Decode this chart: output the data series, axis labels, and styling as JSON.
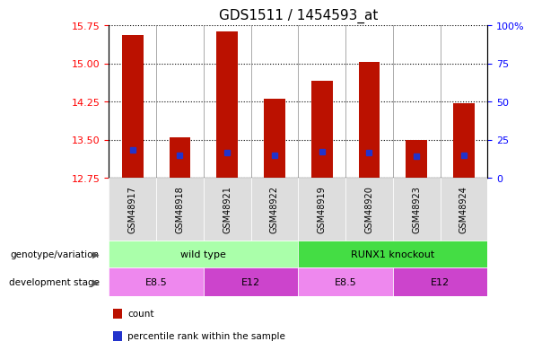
{
  "title": "GDS1511 / 1454593_at",
  "samples": [
    "GSM48917",
    "GSM48918",
    "GSM48921",
    "GSM48922",
    "GSM48919",
    "GSM48920",
    "GSM48923",
    "GSM48924"
  ],
  "bar_values": [
    15.55,
    13.55,
    15.62,
    14.3,
    14.65,
    15.02,
    13.5,
    14.22
  ],
  "bar_bottom": 12.75,
  "percentile_values": [
    13.3,
    13.2,
    13.25,
    13.2,
    13.27,
    13.24,
    13.18,
    13.2
  ],
  "bar_color": "#bb1100",
  "percentile_color": "#2233cc",
  "ylim_left": [
    12.75,
    15.75
  ],
  "yticks_left": [
    12.75,
    13.5,
    14.25,
    15.0,
    15.75
  ],
  "ylim_right": [
    0,
    100
  ],
  "yticks_right": [
    0,
    25,
    50,
    75,
    100
  ],
  "ytick_labels_right": [
    "0",
    "25",
    "50",
    "75",
    "100%"
  ],
  "background_color": "#ffffff",
  "bar_width": 0.45,
  "genotype_groups": [
    {
      "label": "wild type",
      "start": 0,
      "end": 4,
      "color": "#aaffaa"
    },
    {
      "label": "RUNX1 knockout",
      "start": 4,
      "end": 8,
      "color": "#44dd44"
    }
  ],
  "stage_groups": [
    {
      "label": "E8.5",
      "start": 0,
      "end": 2,
      "color": "#ee88ee"
    },
    {
      "label": "E12",
      "start": 2,
      "end": 4,
      "color": "#cc44cc"
    },
    {
      "label": "E8.5",
      "start": 4,
      "end": 6,
      "color": "#ee88ee"
    },
    {
      "label": "E12",
      "start": 6,
      "end": 8,
      "color": "#cc44cc"
    }
  ],
  "legend_items": [
    {
      "label": "count",
      "color": "#bb1100"
    },
    {
      "label": "percentile rank within the sample",
      "color": "#2233cc"
    }
  ],
  "genotype_label": "genotype/variation",
  "stage_label": "development stage"
}
